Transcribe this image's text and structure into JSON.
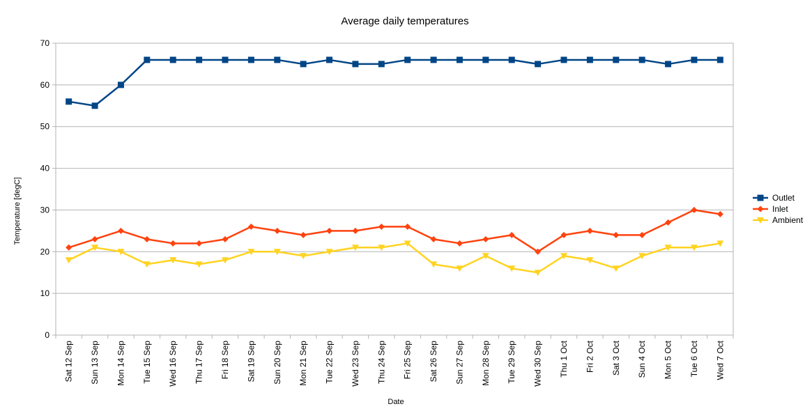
{
  "chart_data": {
    "type": "line",
    "title": "Average daily temperatures",
    "xlabel": "Date",
    "ylabel": "Temperature [degC]",
    "ylim": [
      0,
      70
    ],
    "yticks": [
      0,
      10,
      20,
      30,
      40,
      50,
      60,
      70
    ],
    "grid": "horizontal",
    "legend_position": "right",
    "categories": [
      "Sat 12 Sep",
      "Sun 13 Sep",
      "Mon 14 Sep",
      "Tue 15 Sep",
      "Wed 16 Sep",
      "Thu 17 Sep",
      "Fri 18 Sep",
      "Sat 19 Sep",
      "Sun 20 Sep",
      "Mon 21 Sep",
      "Tue 22 Sep",
      "Wed 23 Sep",
      "Thu 24 Sep",
      "Fri 25 Sep",
      "Sat 26 Sep",
      "Sun 27 Sep",
      "Mon 28 Sep",
      "Tue 29 Sep",
      "Wed 30 Sep",
      "Thu 1 Oct",
      "Fri 2 Oct",
      "Sat 3 Oct",
      "Sun 4 Oct",
      "Mon 5 Oct",
      "Tue 6 Oct",
      "Wed 7 Oct"
    ],
    "series": [
      {
        "name": "Outlet",
        "color": "#004586",
        "marker": "square",
        "values": [
          56,
          55,
          60,
          66,
          66,
          66,
          66,
          66,
          66,
          65,
          66,
          65,
          65,
          66,
          66,
          66,
          66,
          66,
          65,
          66,
          66,
          66,
          66,
          65,
          66,
          66
        ]
      },
      {
        "name": "Inlet",
        "color": "#ff420e",
        "marker": "diamond",
        "values": [
          21,
          23,
          25,
          23,
          22,
          22,
          23,
          26,
          25,
          24,
          25,
          25,
          26,
          26,
          23,
          22,
          23,
          24,
          20,
          24,
          25,
          24,
          24,
          27,
          30,
          29
        ]
      },
      {
        "name": "Ambient",
        "color": "#ffd320",
        "marker": "triangle-down",
        "values": [
          18,
          21,
          20,
          17,
          18,
          17,
          18,
          20,
          20,
          19,
          20,
          21,
          21,
          22,
          17,
          16,
          19,
          16,
          15,
          19,
          18,
          16,
          19,
          21,
          21,
          22
        ]
      }
    ]
  }
}
